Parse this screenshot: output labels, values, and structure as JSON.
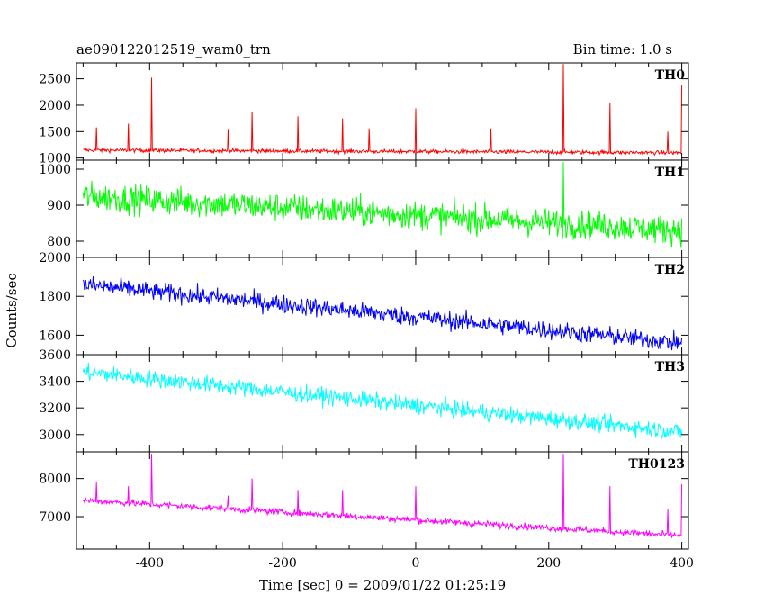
{
  "chart_data": {
    "type": "line",
    "title": "ae090122012519_wam0_trn",
    "bin_time": "Bin time: 1.0 s",
    "xlabel": "Time [sec] 0 = 2009/01/22 01:25:19",
    "ylabel": "Counts/sec",
    "xlim": [
      -510,
      410
    ],
    "x_ticks": [
      -400,
      -200,
      0,
      200,
      400
    ],
    "grid": false,
    "panels": [
      {
        "name": "TH0",
        "color": "#ff0000",
        "ylim": [
          960,
          2800
        ],
        "y_ticks": [
          1000,
          1500,
          2000,
          2500
        ],
        "baseline_start": 1150,
        "baseline_end": 1100,
        "noise": 35,
        "spikes": [
          {
            "x": -480,
            "y": 1580
          },
          {
            "x": -432,
            "y": 1650
          },
          {
            "x": -397,
            "y": 2520
          },
          {
            "x": -282,
            "y": 1550
          },
          {
            "x": -246,
            "y": 1880
          },
          {
            "x": -177,
            "y": 1790
          },
          {
            "x": -110,
            "y": 1750
          },
          {
            "x": -70,
            "y": 1560
          },
          {
            "x": 0,
            "y": 1940
          },
          {
            "x": 113,
            "y": 1560
          },
          {
            "x": 222,
            "y": 2780
          },
          {
            "x": 292,
            "y": 2040
          },
          {
            "x": 379,
            "y": 1500
          },
          {
            "x": 400,
            "y": 2390
          }
        ]
      },
      {
        "name": "TH1",
        "color": "#00ff00",
        "ylim": [
          755,
          1025
        ],
        "y_ticks": [
          800,
          900,
          1000
        ],
        "baseline_start": 925,
        "baseline_end": 830,
        "noise": 38,
        "spikes": [
          {
            "x": 222,
            "y": 1020
          }
        ]
      },
      {
        "name": "TH2",
        "color": "#0000ff",
        "ylim": [
          1500,
          2000
        ],
        "y_ticks": [
          1600,
          1800,
          2000
        ],
        "baseline_start": 1860,
        "baseline_end": 1560,
        "noise": 45,
        "spikes": []
      },
      {
        "name": "TH3",
        "color": "#00ffff",
        "ylim": [
          2870,
          3600
        ],
        "y_ticks": [
          3000,
          3200,
          3400,
          3600
        ],
        "baseline_start": 3470,
        "baseline_end": 3020,
        "noise": 60,
        "spikes": []
      },
      {
        "name": "TH0123",
        "color": "#ff00ff",
        "ylim": [
          6150,
          8700
        ],
        "y_ticks": [
          7000,
          8000
        ],
        "baseline_start": 7430,
        "baseline_end": 6500,
        "noise": 80,
        "spikes": [
          {
            "x": -480,
            "y": 7900
          },
          {
            "x": -432,
            "y": 7800
          },
          {
            "x": -397,
            "y": 8650
          },
          {
            "x": -282,
            "y": 7550
          },
          {
            "x": -246,
            "y": 8000
          },
          {
            "x": -177,
            "y": 7700
          },
          {
            "x": -110,
            "y": 7700
          },
          {
            "x": 0,
            "y": 7800
          },
          {
            "x": 222,
            "y": 8650
          },
          {
            "x": 292,
            "y": 7800
          },
          {
            "x": 379,
            "y": 7200
          },
          {
            "x": 400,
            "y": 7850
          }
        ]
      }
    ]
  }
}
